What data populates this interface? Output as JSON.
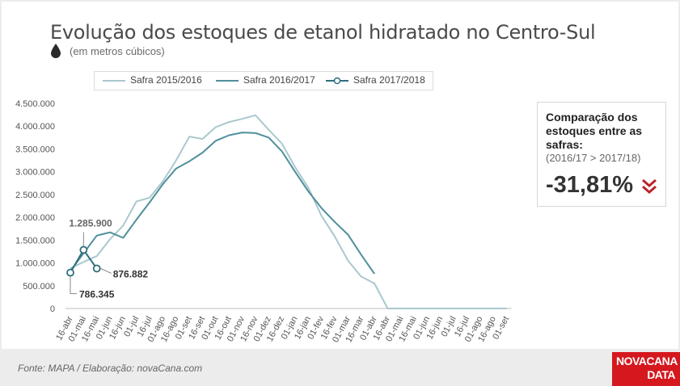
{
  "title": "Evolução dos estoques de etanol hidratado no Centro-Sul",
  "subtitle": "(em metros cúbicos)",
  "comparison": {
    "heading": "Comparação dos estoques entre as safras:",
    "subheading": "(2016/17 > 2017/18)",
    "value": "-31,81%",
    "arrow_icon": "double-chevron-down-icon"
  },
  "footer": "Fonte: MAPA  / Elaboração: novaCana.com",
  "logo": {
    "line1": "NOVACANA",
    "line2": "DATA"
  },
  "colors": {
    "s2015": "#a9c8ce",
    "s2016": "#4f8f9c",
    "s2017": "#2f6e7d",
    "accent": "#d4181e"
  },
  "chart_data": {
    "type": "line",
    "title": "Evolução dos estoques de etanol hidratado no Centro-Sul",
    "subtitle": "(em metros cúbicos)",
    "xlabel": "",
    "ylabel": "",
    "ylim": [
      0,
      4500000
    ],
    "yticks": [
      0,
      500000,
      1000000,
      1500000,
      2000000,
      2500000,
      3000000,
      3500000,
      4000000,
      4500000
    ],
    "ytick_labels": [
      "0",
      "500.000",
      "1.000.000",
      "1.500.000",
      "2.000.000",
      "2.500.000",
      "3.000.000",
      "3.500.000",
      "4.000.000",
      "4.500.000"
    ],
    "grid": false,
    "legend_position": "top",
    "categories": [
      "16-abr",
      "01-mai",
      "16-mai",
      "01-jun",
      "16-jun",
      "01-jul",
      "16-jul",
      "01-ago",
      "16-ago",
      "01-set",
      "16-set",
      "01-out",
      "16-out",
      "01-nov",
      "16-nov",
      "01-dez",
      "16-dez",
      "01-jan",
      "16-jan",
      "01-fev",
      "16-fev",
      "01-mar",
      "16-mar",
      "01-abr",
      "16-abr",
      "01-mai",
      "16-mai",
      "01-jun",
      "16-jun",
      "01-jul",
      "16-jul",
      "01-ago",
      "16-ago",
      "01-set"
    ],
    "series": [
      {
        "name": "Safra 2015/2016",
        "markers": false,
        "values": [
          880000,
          1020000,
          1150000,
          1520000,
          1820000,
          2350000,
          2430000,
          2790000,
          3250000,
          3770000,
          3720000,
          3980000,
          4090000,
          4160000,
          4240000,
          3920000,
          3620000,
          3100000,
          2650000,
          2030000,
          1580000,
          1050000,
          700000,
          550000,
          0,
          0,
          0,
          0,
          0,
          0,
          0,
          0,
          0,
          0
        ]
      },
      {
        "name": "Safra 2016/2017",
        "markers": false,
        "values": [
          820000,
          1210000,
          1600000,
          1670000,
          1550000,
          1950000,
          2330000,
          2730000,
          3070000,
          3230000,
          3420000,
          3680000,
          3800000,
          3860000,
          3850000,
          3750000,
          3450000,
          3000000,
          2570000,
          2200000,
          1900000,
          1620000,
          1180000,
          760000,
          null,
          null,
          null,
          null,
          null,
          null,
          null,
          null,
          null,
          null
        ]
      },
      {
        "name": "Safra 2017/2018",
        "markers": true,
        "values": [
          786345,
          1285900,
          876882,
          null,
          null,
          null,
          null,
          null,
          null,
          null,
          null,
          null,
          null,
          null,
          null,
          null,
          null,
          null,
          null,
          null,
          null,
          null,
          null,
          null,
          null,
          null,
          null,
          null,
          null,
          null,
          null,
          null,
          null,
          null
        ]
      }
    ],
    "annotations": [
      "1.285.900",
      "876.882",
      "786.345"
    ]
  }
}
